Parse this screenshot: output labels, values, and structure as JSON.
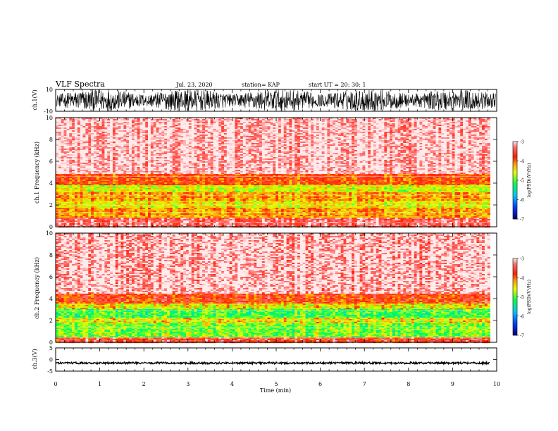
{
  "header": {
    "title": "VLF Spectra",
    "date": "Jul. 23, 2020",
    "station": "station= KAP",
    "start": "start UT =  20: 30: 1"
  },
  "chart_data": [
    {
      "type": "line",
      "panel": "ch1-waveform",
      "ylabel": "ch.1(V)",
      "ylim": [
        -10,
        10
      ],
      "yticks": [
        "10",
        "-10"
      ],
      "xlim": [
        0,
        10
      ],
      "trace_color": "#000000",
      "description_values": {
        "amplitude_range_V": [
          -10,
          10
        ],
        "saturated": true
      }
    },
    {
      "type": "heatmap",
      "panel": "ch1-spectrogram",
      "ylabel": "ch.1 Frequency (kHz)",
      "ylim": [
        0,
        10
      ],
      "yticks": [
        "0",
        "2",
        "4",
        "6",
        "8",
        "10"
      ],
      "xlim": [
        0,
        9.85
      ],
      "bands_kHz": [
        {
          "from": 0.0,
          "to": 0.9,
          "log_psd": -3.4
        },
        {
          "from": 0.9,
          "to": 1.8,
          "log_psd": -4.2
        },
        {
          "from": 1.8,
          "to": 2.4,
          "log_psd": -4.5
        },
        {
          "from": 2.4,
          "to": 3.2,
          "log_psd": -4.2
        },
        {
          "from": 3.2,
          "to": 3.8,
          "log_psd": -4.6
        },
        {
          "from": 3.8,
          "to": 4.8,
          "log_psd": -3.9
        },
        {
          "from": 4.8,
          "to": 10.0,
          "log_psd": -3.1
        }
      ],
      "colorbar": {
        "label": "log(PSD)(V²/Hz)",
        "range": [
          -7,
          -3
        ],
        "ticks": [
          "-3",
          "-4",
          "-5",
          "-6",
          "-7"
        ]
      }
    },
    {
      "type": "heatmap",
      "panel": "ch2-spectrogram",
      "ylabel": "ch.2 Frequency (kHz)",
      "ylim": [
        0,
        10
      ],
      "yticks": [
        "0",
        "2",
        "4",
        "6",
        "8",
        "10"
      ],
      "xlim": [
        0,
        9.85
      ],
      "bands_kHz": [
        {
          "from": 0.0,
          "to": 0.5,
          "log_psd": -3.6
        },
        {
          "from": 0.5,
          "to": 1.8,
          "log_psd": -4.9
        },
        {
          "from": 1.8,
          "to": 2.2,
          "log_psd": -4.5
        },
        {
          "from": 2.2,
          "to": 3.0,
          "log_psd": -5.1
        },
        {
          "from": 3.0,
          "to": 3.6,
          "log_psd": -4.5
        },
        {
          "from": 3.6,
          "to": 4.4,
          "log_psd": -3.8
        },
        {
          "from": 4.4,
          "to": 10.0,
          "log_psd": -3.1
        }
      ],
      "colorbar": {
        "label": "log(PSD)(V²/Hz)",
        "range": [
          -7,
          -3
        ],
        "ticks": [
          "-3",
          "-4",
          "-5",
          "-6",
          "-7"
        ]
      }
    },
    {
      "type": "line",
      "panel": "ch3-waveform",
      "ylabel": "ch.3(V)",
      "ylim": [
        -5,
        5
      ],
      "yticks": [
        "5",
        "0",
        "-5"
      ],
      "xlim": [
        0,
        10
      ],
      "trace_color": "#000000",
      "description_values": {
        "offset_V": -1.5,
        "amplitude_V": 0.4
      }
    }
  ],
  "xaxis": {
    "label": "Time (min)",
    "ticks": [
      "0",
      "1",
      "2",
      "3",
      "4",
      "5",
      "6",
      "7",
      "8",
      "9",
      "10"
    ]
  }
}
